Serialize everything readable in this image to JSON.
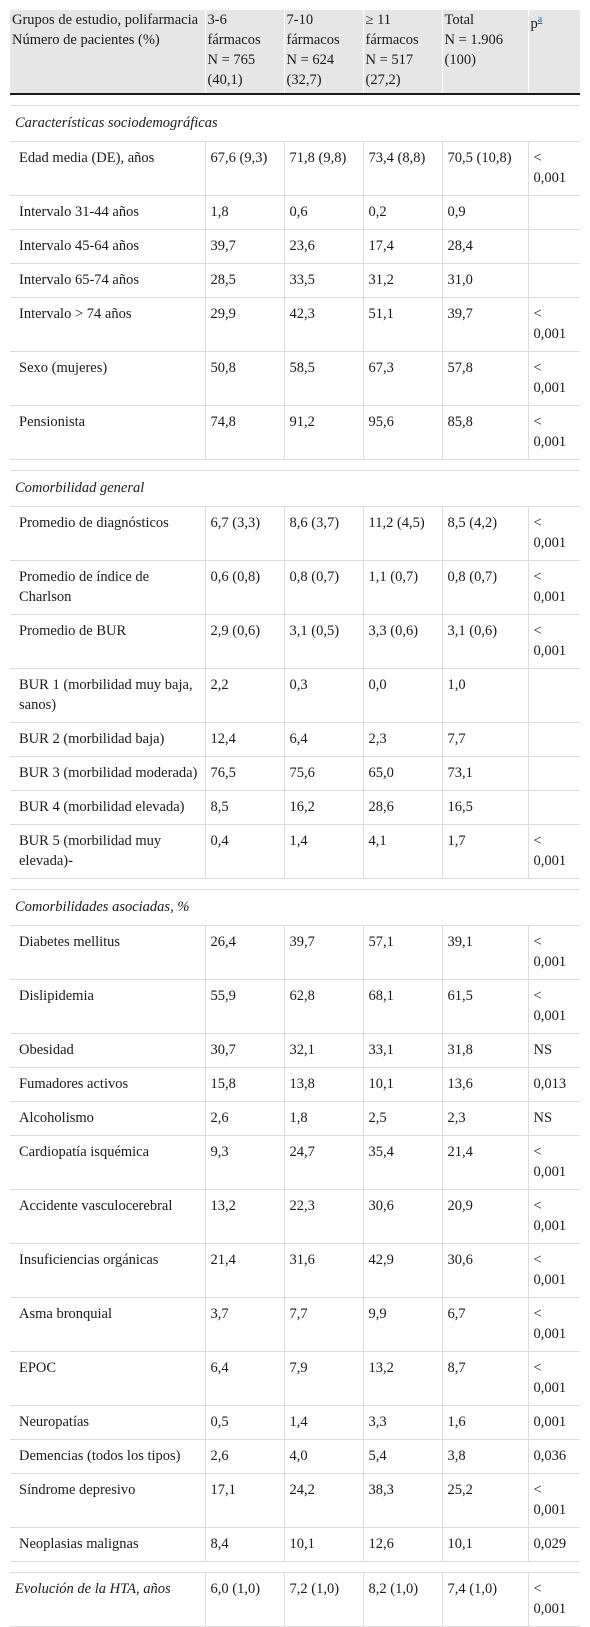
{
  "header": {
    "col0_line1": "Grupos de estudio, polifarmacia",
    "col0_line2": "Número de pacientes (%)",
    "groups": [
      {
        "top": "3-6 fármacos",
        "n": "N = 765 (40,1)"
      },
      {
        "top": "7-10 fármacos",
        "n": "N = 624 (32,7)"
      },
      {
        "top": "≥ 11 fármacos",
        "n": "N = 517 (27,2)"
      },
      {
        "top": "Total",
        "n": "N = 1.906 (100)"
      }
    ],
    "p_label": "p",
    "p_footnote": "a"
  },
  "sections": [
    {
      "title": "Características sociodemográficas",
      "rows": [
        {
          "label": "Edad media (DE), años",
          "v": [
            "67,6 (9,3)",
            "71,8 (9,8)",
            "73,4 (8,8)",
            "70,5 (10,8)"
          ],
          "p": "< 0,001"
        },
        {
          "label": "Intervalo 31-44 años",
          "v": [
            "1,8",
            "0,6",
            "0,2",
            "0,9"
          ],
          "p": ""
        },
        {
          "label": "Intervalo 45-64 años",
          "v": [
            "39,7",
            "23,6",
            "17,4",
            "28,4"
          ],
          "p": ""
        },
        {
          "label": "Intervalo 65-74 años",
          "v": [
            "28,5",
            "33,5",
            "31,2",
            "31,0"
          ],
          "p": ""
        },
        {
          "label": "Intervalo > 74 años",
          "v": [
            "29,9",
            "42,3",
            "51,1",
            "39,7"
          ],
          "p": "< 0,001"
        },
        {
          "label": "Sexo (mujeres)",
          "v": [
            "50,8",
            "58,5",
            "67,3",
            "57,8"
          ],
          "p": "< 0,001"
        },
        {
          "label": "Pensionista",
          "v": [
            "74,8",
            "91,2",
            "95,6",
            "85,8"
          ],
          "p": "< 0,001"
        }
      ]
    },
    {
      "title": "Comorbilidad general",
      "rows": [
        {
          "label": "Promedio de diagnósticos",
          "v": [
            "6,7 (3,3)",
            "8,6 (3,7)",
            "11,2 (4,5)",
            "8,5 (4,2)"
          ],
          "p": "< 0,001"
        },
        {
          "label": "Promedio de índice de Charlson",
          "v": [
            "0,6 (0,8)",
            "0,8 (0,7)",
            "1,1 (0,7)",
            "0,8 (0,7)"
          ],
          "p": "< 0,001"
        },
        {
          "label": "Promedio de BUR",
          "v": [
            "2,9 (0,6)",
            "3,1 (0,5)",
            "3,3 (0,6)",
            "3,1 (0,6)"
          ],
          "p": "< 0,001"
        },
        {
          "label": "BUR 1 (morbilidad muy baja, sanos)",
          "v": [
            "2,2",
            "0,3",
            "0,0",
            "1,0"
          ],
          "p": ""
        },
        {
          "label": "BUR 2 (morbilidad baja)",
          "v": [
            "12,4",
            "6,4",
            "2,3",
            "7,7"
          ],
          "p": ""
        },
        {
          "label": "BUR 3 (morbilidad moderada)",
          "v": [
            "76,5",
            "75,6",
            "65,0",
            "73,1"
          ],
          "p": ""
        },
        {
          "label": "BUR 4 (morbilidad elevada)",
          "v": [
            "8,5",
            "16,2",
            "28,6",
            "16,5"
          ],
          "p": ""
        },
        {
          "label": "BUR 5 (morbilidad muy elevada)-",
          "v": [
            "0,4",
            "1,4",
            "4,1",
            "1,7"
          ],
          "p": "< 0,001"
        }
      ]
    },
    {
      "title": "Comorbilidades asociadas, %",
      "rows": [
        {
          "label": "Diabetes mellitus",
          "v": [
            "26,4",
            "39,7",
            "57,1",
            "39,1"
          ],
          "p": "< 0,001"
        },
        {
          "label": "Dislipidemia",
          "v": [
            "55,9",
            "62,8",
            "68,1",
            "61,5"
          ],
          "p": "< 0,001"
        },
        {
          "label": "Obesidad",
          "v": [
            "30,7",
            "32,1",
            "33,1",
            "31,8"
          ],
          "p": "NS"
        },
        {
          "label": "Fumadores activos",
          "v": [
            "15,8",
            "13,8",
            "10,1",
            "13,6"
          ],
          "p": "0,013"
        },
        {
          "label": "Alcoholismo",
          "v": [
            "2,6",
            "1,8",
            "2,5",
            "2,3"
          ],
          "p": "NS"
        },
        {
          "label": "Cardiopatía isquémica",
          "v": [
            "9,3",
            "24,7",
            "35,4",
            "21,4"
          ],
          "p": "< 0,001"
        },
        {
          "label": "Accidente vasculocerebral",
          "v": [
            "13,2",
            "22,3",
            "30,6",
            "20,9"
          ],
          "p": "< 0,001"
        },
        {
          "label": "Insuficiencias orgánicas",
          "v": [
            "21,4",
            "31,6",
            "42,9",
            "30,6"
          ],
          "p": "< 0,001"
        },
        {
          "label": "Asma bronquial",
          "v": [
            "3,7",
            "7,7",
            "9,9",
            "6,7"
          ],
          "p": "< 0,001"
        },
        {
          "label": "EPOC",
          "v": [
            "6,4",
            "7,9",
            "13,2",
            "8,7"
          ],
          "p": "< 0,001"
        },
        {
          "label": "Neuropatías",
          "v": [
            "0,5",
            "1,4",
            "3,3",
            "1,6"
          ],
          "p": "0,001"
        },
        {
          "label": "Demencias (todos los tipos)",
          "v": [
            "2,6",
            "4,0",
            "5,4",
            "3,8"
          ],
          "p": "0,036"
        },
        {
          "label": "Síndrome depresivo",
          "v": [
            "17,1",
            "24,2",
            "38,3",
            "25,2"
          ],
          "p": "< 0,001"
        },
        {
          "label": "Neoplasias malignas",
          "v": [
            "8,4",
            "10,1",
            "12,6",
            "10,1"
          ],
          "p": "0,029"
        }
      ]
    }
  ],
  "final_row": {
    "label": "Evolución de la HTA, años",
    "v": [
      "6,0 (1,0)",
      "7,2 (1,0)",
      "8,2 (1,0)",
      "7,4 (1,0)"
    ],
    "p": "< 0,001"
  }
}
